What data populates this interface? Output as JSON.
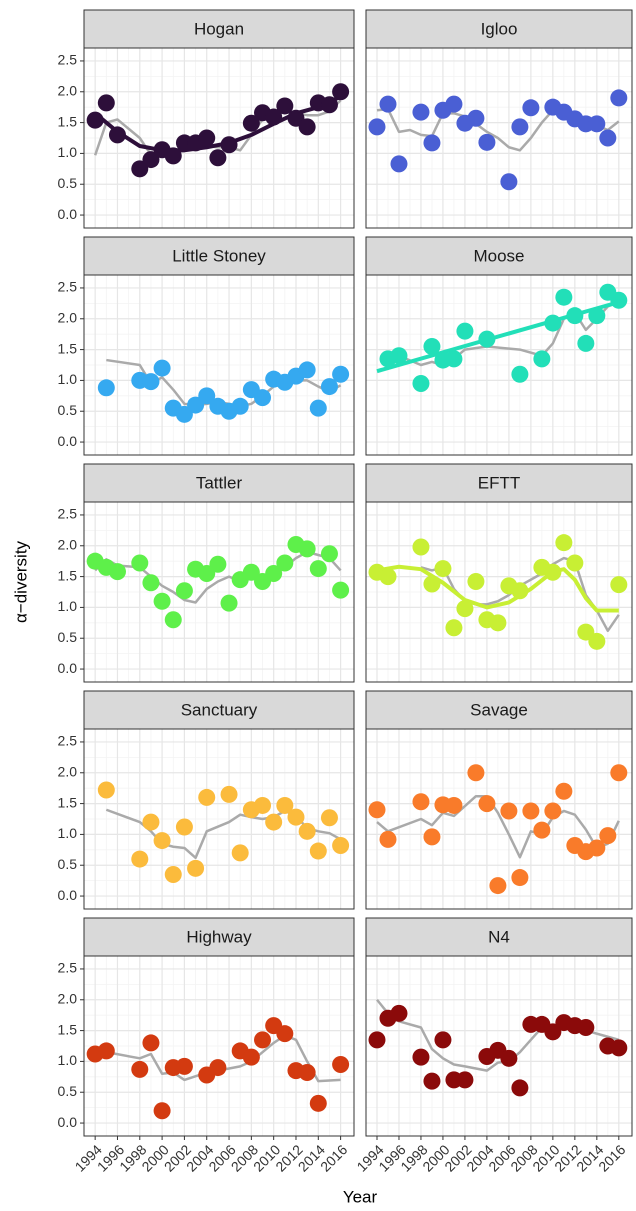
{
  "xlabel": "Year",
  "ylabel": "α−diversity",
  "xlim": [
    1993,
    2017.2
  ],
  "xticks": [
    1994,
    1996,
    1998,
    2000,
    2002,
    2004,
    2006,
    2008,
    2010,
    2012,
    2014,
    2016
  ],
  "ylim": [
    -0.21,
    2.71
  ],
  "yticks": [
    {
      "value": 0,
      "label": "0.0"
    },
    0.5,
    {
      "value": 1,
      "label": "1.0"
    },
    1.5,
    {
      "value": 2,
      "label": "2.0"
    },
    2.5
  ],
  "grid": true,
  "chart_data": [
    {
      "type": "scatter",
      "title": "Hogan",
      "series": [
        {
          "type": "scatter",
          "color": "#2d0f3a",
          "x": [
            1994,
            1995,
            1996,
            1998,
            1999,
            2000,
            2001,
            2002,
            2003,
            2004,
            2005,
            2006,
            2008,
            2009,
            2010,
            2011,
            2012,
            2013,
            2014,
            2015,
            2016
          ],
          "values": [
            1.54,
            1.82,
            1.3,
            0.75,
            0.9,
            1.06,
            0.96,
            1.17,
            1.17,
            1.25,
            0.93,
            1.14,
            1.49,
            1.66,
            1.59,
            1.77,
            1.57,
            1.43,
            1.82,
            1.79,
            2.0
          ]
        },
        {
          "type": "line",
          "color": "#aaaaaa",
          "x": [
            1994,
            1995,
            1996,
            1997,
            1998,
            1999,
            2000,
            2001,
            2002,
            2003,
            2004,
            2005,
            2006,
            2007,
            2008,
            2009,
            2010,
            2011,
            2012,
            2013,
            2014,
            2015,
            2016
          ],
          "values": [
            0.97,
            1.5,
            1.55,
            1.4,
            1.25,
            0.98,
            1.0,
            1.05,
            1.1,
            1.12,
            1.12,
            1.1,
            1.1,
            1.05,
            1.3,
            1.55,
            1.62,
            1.67,
            1.65,
            1.62,
            1.62,
            1.68,
            1.86
          ]
        },
        {
          "type": "smooth",
          "color": "#2d0f3a",
          "x": [
            1994,
            1996,
            1998,
            2000,
            2002,
            2004,
            2006,
            2008,
            2010,
            2012,
            2014,
            2016
          ],
          "values": [
            1.65,
            1.35,
            1.12,
            1.05,
            1.05,
            1.1,
            1.17,
            1.3,
            1.48,
            1.65,
            1.75,
            1.92
          ]
        }
      ]
    },
    {
      "type": "scatter",
      "title": "Igloo",
      "series": [
        {
          "type": "scatter",
          "color": "#4a5fd4",
          "x": [
            1994,
            1995,
            1996,
            1998,
            1999,
            2000,
            2001,
            2002,
            2003,
            2004,
            2006,
            2007,
            2008,
            2010,
            2011,
            2012,
            2013,
            2014,
            2015,
            2016
          ],
          "values": [
            1.43,
            1.8,
            0.83,
            1.67,
            1.17,
            1.7,
            1.8,
            1.49,
            1.57,
            1.18,
            0.54,
            1.43,
            1.74,
            1.75,
            1.67,
            1.56,
            1.48,
            1.48,
            1.25,
            1.9
          ]
        },
        {
          "type": "line",
          "color": "#aaaaaa",
          "x": [
            1994,
            1995,
            1996,
            1997,
            1998,
            1999,
            2000,
            2001,
            2002,
            2003,
            2004,
            2005,
            2006,
            2007,
            2008,
            2009,
            2010,
            2011,
            2012,
            2013,
            2014,
            2015,
            2016
          ],
          "values": [
            1.7,
            1.72,
            1.35,
            1.38,
            1.3,
            1.28,
            1.65,
            1.65,
            1.6,
            1.48,
            1.35,
            1.25,
            1.1,
            1.05,
            1.25,
            1.5,
            1.7,
            1.6,
            1.55,
            1.5,
            1.45,
            1.38,
            1.52
          ]
        }
      ]
    },
    {
      "type": "scatter",
      "title": "Little Stoney",
      "series": [
        {
          "type": "scatter",
          "color": "#35a9f0",
          "x": [
            1995,
            1998,
            1999,
            2000,
            2001,
            2002,
            2003,
            2004,
            2005,
            2006,
            2007,
            2008,
            2009,
            2010,
            2011,
            2012,
            2013,
            2014,
            2015,
            2016
          ],
          "values": [
            0.88,
            1.0,
            0.98,
            1.2,
            0.55,
            0.45,
            0.6,
            0.75,
            0.58,
            0.5,
            0.58,
            0.85,
            0.72,
            1.02,
            0.97,
            1.07,
            1.17,
            0.55,
            0.9,
            1.1
          ]
        },
        {
          "type": "line",
          "color": "#aaaaaa",
          "x": [
            1995,
            1998,
            1999,
            2000,
            2001,
            2002,
            2003,
            2004,
            2005,
            2006,
            2007,
            2008,
            2009,
            2010,
            2011,
            2012,
            2013,
            2014,
            2015,
            2016
          ],
          "values": [
            1.33,
            1.25,
            0.95,
            1.05,
            0.85,
            0.62,
            0.6,
            0.62,
            0.65,
            0.62,
            0.58,
            0.62,
            0.75,
            0.9,
            0.95,
            1.0,
            1.0,
            0.9,
            0.82,
            0.92
          ]
        }
      ]
    },
    {
      "type": "scatter",
      "title": "Moose",
      "series": [
        {
          "type": "scatter",
          "color": "#22dfb8",
          "x": [
            1995,
            1996,
            1998,
            1999,
            2000,
            2001,
            2002,
            2004,
            2007,
            2009,
            2010,
            2011,
            2012,
            2013,
            2014,
            2015,
            2016
          ],
          "values": [
            1.35,
            1.4,
            0.95,
            1.55,
            1.33,
            1.35,
            1.8,
            1.67,
            1.1,
            1.35,
            1.93,
            2.35,
            2.05,
            1.6,
            2.05,
            2.43,
            2.3
          ]
        },
        {
          "type": "line",
          "color": "#aaaaaa",
          "x": [
            1995,
            1996,
            1998,
            1999,
            2000,
            2001,
            2002,
            2004,
            2007,
            2009,
            2010,
            2011,
            2012,
            2013,
            2014,
            2015,
            2016
          ],
          "values": [
            1.3,
            1.4,
            1.25,
            1.3,
            1.25,
            1.35,
            1.5,
            1.55,
            1.5,
            1.4,
            1.6,
            2.0,
            2.1,
            1.82,
            2.0,
            2.2,
            2.27
          ]
        },
        {
          "type": "smooth",
          "color": "#22dfb8",
          "x": [
            1994,
            2016
          ],
          "values": [
            1.15,
            2.27
          ]
        }
      ]
    },
    {
      "type": "scatter",
      "title": "Tattler",
      "series": [
        {
          "type": "scatter",
          "color": "#5ef04a",
          "x": [
            1994,
            1995,
            1996,
            1998,
            1999,
            2000,
            2001,
            2002,
            2003,
            2004,
            2005,
            2006,
            2007,
            2008,
            2009,
            2010,
            2011,
            2012,
            2013,
            2014,
            2015,
            2016
          ],
          "values": [
            1.75,
            1.65,
            1.58,
            1.72,
            1.4,
            1.1,
            0.8,
            1.27,
            1.62,
            1.55,
            1.7,
            1.07,
            1.45,
            1.57,
            1.42,
            1.55,
            1.72,
            2.02,
            1.95,
            1.63,
            1.87,
            1.28
          ]
        },
        {
          "type": "line",
          "color": "#aaaaaa",
          "x": [
            1994,
            1995,
            1996,
            1998,
            1999,
            2000,
            2001,
            2002,
            2003,
            2004,
            2005,
            2006,
            2007,
            2008,
            2009,
            2010,
            2011,
            2012,
            2013,
            2014,
            2015,
            2016
          ],
          "values": [
            1.6,
            1.78,
            1.68,
            1.65,
            1.5,
            1.35,
            1.25,
            1.12,
            1.08,
            1.3,
            1.42,
            1.5,
            1.42,
            1.47,
            1.5,
            1.6,
            1.65,
            1.8,
            1.9,
            1.85,
            1.8,
            1.6
          ]
        }
      ]
    },
    {
      "type": "scatter",
      "title": "EFTT",
      "series": [
        {
          "type": "scatter",
          "color": "#c8ef34",
          "x": [
            1994,
            1995,
            1998,
            1999,
            2000,
            2001,
            2002,
            2003,
            2004,
            2005,
            2006,
            2007,
            2009,
            2010,
            2011,
            2012,
            2013,
            2014,
            2016
          ],
          "values": [
            1.57,
            1.5,
            1.98,
            1.38,
            1.63,
            0.67,
            0.98,
            1.42,
            0.8,
            0.75,
            1.35,
            1.27,
            1.65,
            1.57,
            2.05,
            1.72,
            0.6,
            0.45,
            1.37
          ]
        },
        {
          "type": "line",
          "color": "#aaaaaa",
          "x": [
            1998,
            1999,
            2000,
            2001,
            2002,
            2003,
            2004,
            2005,
            2006,
            2007,
            2009,
            2010,
            2011,
            2012,
            2013,
            2014,
            2015,
            2016
          ],
          "values": [
            1.65,
            1.6,
            1.65,
            1.3,
            1.1,
            1.05,
            1.05,
            1.1,
            1.2,
            1.35,
            1.55,
            1.7,
            1.8,
            1.75,
            1.2,
            0.95,
            0.62,
            0.88
          ]
        },
        {
          "type": "smooth",
          "color": "#c8ef34",
          "x": [
            1994,
            1996,
            1998,
            2000,
            2002,
            2004,
            2006,
            2008,
            2010,
            2011,
            2012,
            2013,
            2014,
            2016
          ],
          "values": [
            1.6,
            1.66,
            1.62,
            1.4,
            1.12,
            1.0,
            1.08,
            1.3,
            1.58,
            1.62,
            1.45,
            1.15,
            0.95,
            0.95
          ]
        }
      ]
    },
    {
      "type": "scatter",
      "title": "Sanctuary",
      "series": [
        {
          "type": "scatter",
          "color": "#fbbb3c",
          "x": [
            1995,
            1998,
            1999,
            2000,
            2001,
            2002,
            2003,
            2004,
            2006,
            2007,
            2008,
            2009,
            2010,
            2011,
            2012,
            2013,
            2014,
            2015,
            2016
          ],
          "values": [
            1.72,
            0.6,
            1.2,
            0.9,
            0.35,
            1.12,
            0.45,
            1.6,
            1.65,
            0.7,
            1.4,
            1.47,
            1.2,
            1.47,
            1.28,
            1.05,
            0.73,
            1.27,
            0.82
          ]
        },
        {
          "type": "line",
          "color": "#aaaaaa",
          "x": [
            1995,
            1998,
            1999,
            2000,
            2001,
            2002,
            2003,
            2004,
            2006,
            2007,
            2008,
            2009,
            2010,
            2011,
            2012,
            2013,
            2014,
            2015,
            2016
          ],
          "values": [
            1.4,
            1.2,
            1.05,
            0.85,
            0.8,
            0.78,
            0.62,
            1.05,
            1.2,
            1.32,
            1.28,
            1.25,
            1.28,
            1.38,
            1.3,
            1.1,
            1.05,
            1.02,
            0.92
          ]
        }
      ]
    },
    {
      "type": "scatter",
      "title": "Savage",
      "series": [
        {
          "type": "scatter",
          "color": "#f97b2a",
          "x": [
            1994,
            1995,
            1998,
            1999,
            2000,
            2001,
            2003,
            2004,
            2005,
            2006,
            2007,
            2008,
            2009,
            2010,
            2011,
            2012,
            2013,
            2014,
            2015,
            2016
          ],
          "values": [
            1.4,
            0.92,
            1.53,
            0.96,
            1.48,
            1.47,
            2.0,
            1.5,
            0.17,
            1.38,
            0.3,
            1.38,
            1.07,
            1.38,
            1.7,
            0.82,
            0.72,
            0.78,
            0.98,
            2.0
          ]
        },
        {
          "type": "line",
          "color": "#aaaaaa",
          "x": [
            1994,
            1995,
            1998,
            1999,
            2000,
            2001,
            2003,
            2004,
            2005,
            2006,
            2007,
            2008,
            2009,
            2010,
            2011,
            2012,
            2013,
            2014,
            2015,
            2016
          ],
          "values": [
            1.2,
            1.05,
            1.25,
            1.15,
            1.35,
            1.3,
            1.62,
            1.62,
            1.35,
            1.0,
            0.63,
            1.05,
            1.0,
            1.28,
            1.38,
            1.32,
            1.08,
            0.78,
            0.85,
            1.22
          ]
        }
      ]
    },
    {
      "type": "scatter",
      "title": "Highway",
      "series": [
        {
          "type": "scatter",
          "color": "#d33a10",
          "x": [
            1994,
            1995,
            1998,
            1999,
            2000,
            2001,
            2002,
            2004,
            2005,
            2007,
            2008,
            2009,
            2010,
            2011,
            2012,
            2013,
            2014,
            2016
          ],
          "values": [
            1.12,
            1.17,
            0.87,
            1.3,
            0.2,
            0.9,
            0.92,
            0.78,
            0.9,
            1.17,
            1.07,
            1.35,
            1.58,
            1.45,
            0.85,
            0.82,
            0.32,
            0.95
          ]
        },
        {
          "type": "line",
          "color": "#aaaaaa",
          "x": [
            1994,
            1995,
            1998,
            1999,
            2000,
            2001,
            2002,
            2004,
            2005,
            2007,
            2008,
            2009,
            2010,
            2011,
            2012,
            2013,
            2014,
            2016
          ],
          "values": [
            1.05,
            1.15,
            1.05,
            1.12,
            0.8,
            0.82,
            0.7,
            0.82,
            0.85,
            0.92,
            1.0,
            1.15,
            1.3,
            1.42,
            1.35,
            1.0,
            0.68,
            0.7
          ]
        }
      ]
    },
    {
      "type": "scatter",
      "title": "N4",
      "series": [
        {
          "type": "scatter",
          "color": "#8b0a0a",
          "x": [
            1994,
            1995,
            1996,
            1998,
            1999,
            2000,
            2001,
            2002,
            2004,
            2005,
            2006,
            2007,
            2008,
            2009,
            2010,
            2011,
            2012,
            2013,
            2015,
            2016
          ],
          "values": [
            1.35,
            1.7,
            1.78,
            1.07,
            0.68,
            1.35,
            0.7,
            0.7,
            1.08,
            1.18,
            1.05,
            0.57,
            1.6,
            1.6,
            1.48,
            1.63,
            1.58,
            1.55,
            1.25,
            1.22
          ]
        },
        {
          "type": "line",
          "color": "#aaaaaa",
          "x": [
            1994,
            1995,
            1996,
            1998,
            1999,
            2000,
            2001,
            2002,
            2004,
            2005,
            2006,
            2007,
            2008,
            2009,
            2010,
            2011,
            2012,
            2013,
            2015,
            2016
          ],
          "values": [
            2.0,
            1.78,
            1.65,
            1.55,
            1.2,
            1.05,
            0.95,
            0.92,
            0.85,
            0.98,
            1.0,
            1.15,
            1.35,
            1.55,
            1.55,
            1.55,
            1.55,
            1.5,
            1.4,
            1.35
          ]
        }
      ]
    }
  ]
}
